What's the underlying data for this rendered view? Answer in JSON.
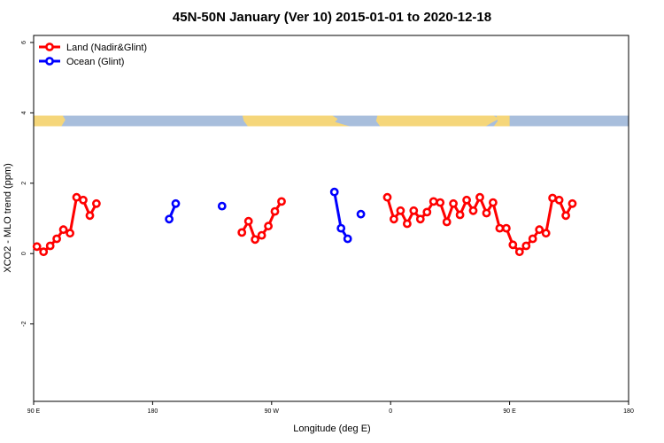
{
  "chart_data": {
    "type": "line",
    "title": "45N-50N January (Ver 10)   2015-01-01 to 2020-12-18",
    "xlabel": "Longitude (deg E)",
    "ylabel": "XCO2 - MLO trend (ppm)",
    "xlim": [
      90,
      450
    ],
    "ylim": [
      -4.2,
      6.2
    ],
    "x_ticks": [
      {
        "value": 90,
        "label": "90 E"
      },
      {
        "value": 180,
        "label": "180"
      },
      {
        "value": 270,
        "label": "90 W"
      },
      {
        "value": 360,
        "label": "0"
      },
      {
        "value": 450,
        "label": "90 E"
      },
      {
        "value": 540,
        "label": "180"
      }
    ],
    "y_ticks": [
      {
        "value": -2,
        "label": "-2"
      },
      {
        "value": 0,
        "label": "0"
      },
      {
        "value": 2,
        "label": "2"
      },
      {
        "value": 4,
        "label": "4"
      },
      {
        "value": 6,
        "label": "6"
      }
    ],
    "map_strip": {
      "y_range": [
        3.62,
        3.92
      ],
      "ocean_color": "#a8bedc",
      "land_color": "#f5d67a"
    },
    "legend_position": "top-left",
    "series": [
      {
        "name": "Land (Nadir&Glint)",
        "color": "#ff0000",
        "segments": [
          [
            [
              92.5,
              0.2
            ],
            [
              97.5,
              0.05
            ],
            [
              102.5,
              0.22
            ],
            [
              107.5,
              0.42
            ],
            [
              112.5,
              0.68
            ],
            [
              117.5,
              0.58
            ],
            [
              122.5,
              1.6
            ],
            [
              127.5,
              1.52
            ],
            [
              132.5,
              1.08
            ],
            [
              137.5,
              1.42
            ]
          ],
          [
            [
              247.5,
              0.6
            ],
            [
              252.5,
              0.92
            ],
            [
              257.5,
              0.4
            ],
            [
              262.5,
              0.52
            ],
            [
              267.5,
              0.78
            ],
            [
              272.5,
              1.2
            ],
            [
              277.5,
              1.48
            ]
          ],
          [
            [
              357.5,
              1.6
            ],
            [
              362.5,
              0.98
            ],
            [
              367.5,
              1.22
            ],
            [
              372.5,
              0.85
            ],
            [
              377.5,
              1.22
            ],
            [
              382.5,
              0.98
            ],
            [
              387.5,
              1.18
            ],
            [
              392.5,
              1.48
            ],
            [
              397.5,
              1.45
            ],
            [
              402.5,
              0.9
            ],
            [
              407.5,
              1.42
            ],
            [
              412.5,
              1.1
            ],
            [
              417.5,
              1.52
            ],
            [
              422.5,
              1.22
            ],
            [
              427.5,
              1.6
            ],
            [
              432.5,
              1.15
            ],
            [
              437.5,
              1.45
            ],
            [
              442.5,
              0.72
            ],
            [
              447.5,
              0.72
            ],
            [
              452.5,
              0.25
            ],
            [
              457.5,
              0.05
            ],
            [
              462.5,
              0.22
            ],
            [
              467.5,
              0.42
            ],
            [
              472.5,
              0.68
            ],
            [
              477.5,
              0.58
            ],
            [
              482.5,
              1.58
            ],
            [
              487.5,
              1.52
            ],
            [
              492.5,
              1.08
            ],
            [
              497.5,
              1.42
            ]
          ]
        ]
      },
      {
        "name": "Ocean (Glint)",
        "color": "#0000ff",
        "segments": [
          [
            [
              192.5,
              0.98
            ],
            [
              197.5,
              1.42
            ]
          ],
          [
            [
              232.5,
              1.35
            ]
          ],
          [
            [
              317.5,
              1.75
            ],
            [
              322.5,
              0.72
            ],
            [
              327.5,
              0.42
            ]
          ],
          [
            [
              337.5,
              1.12
            ]
          ]
        ]
      }
    ]
  }
}
